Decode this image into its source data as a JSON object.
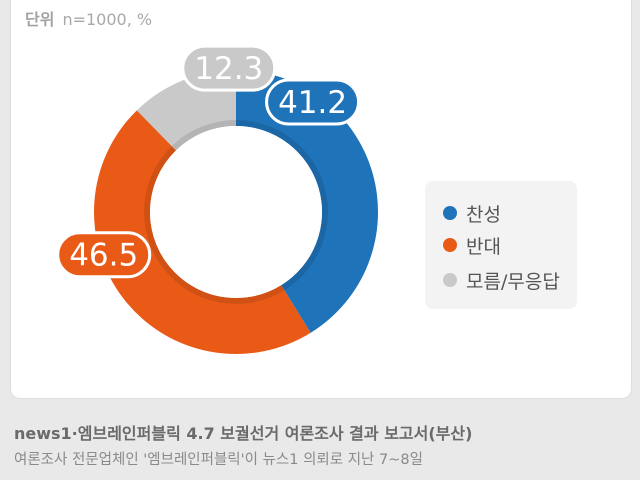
{
  "unit": {
    "label": "단위",
    "value": "n=1000, %"
  },
  "chart_data": {
    "type": "pie",
    "donut": true,
    "categories": [
      "찬성",
      "반대",
      "모름/무응답"
    ],
    "values": [
      41.2,
      46.5,
      12.3
    ],
    "labels": [
      "41.2",
      "46.5",
      "12.3"
    ],
    "colors": [
      "#1f73b9",
      "#e95a17",
      "#c9c9c9"
    ],
    "legend_position": "right"
  },
  "legend": {
    "items": [
      {
        "label": "찬성",
        "color": "#1f73b9"
      },
      {
        "label": "반대",
        "color": "#e95a17"
      },
      {
        "label": "모름/무응답",
        "color": "#c9c9c9"
      }
    ]
  },
  "caption": {
    "title": "news1·엠브레인퍼블릭 4.7 보궐선거 여론조사 결과 보고서(부산)",
    "line1": "여론조사 전문업체인 '엠브레인퍼블릭'이 뉴스1 의뢰로 지난 7~8일"
  }
}
